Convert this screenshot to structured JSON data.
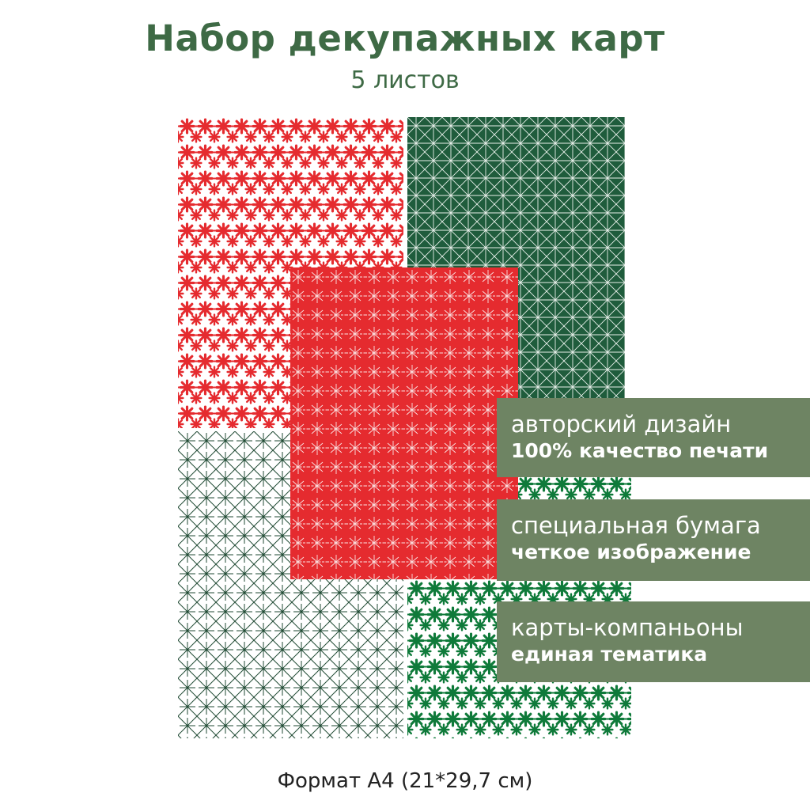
{
  "header": {
    "title": "Набор декупажных карт",
    "subtitle": "5 листов"
  },
  "colors": {
    "title_green": "#3e6a45",
    "label_bg": "#6e8463",
    "red": "#e52b2f",
    "dark_green": "#1f5c3c",
    "bright_green": "#0f7a3a"
  },
  "sheets": [
    {
      "name": "red-snowflakes-on-white"
    },
    {
      "name": "white-lattice-on-dark-green"
    },
    {
      "name": "dark-stars-on-white"
    },
    {
      "name": "green-snowflakes-on-white"
    },
    {
      "name": "white-stars-on-red"
    }
  ],
  "labels": [
    {
      "line1": "авторский дизайн",
      "line2": "100% качество печати"
    },
    {
      "line1": "специальная бумага",
      "line2": "четкое изображение"
    },
    {
      "line1": "карты-компаньоны",
      "line2": "единая тематика"
    }
  ],
  "footer": {
    "format": "Формат А4 (21*29,7 см)"
  }
}
